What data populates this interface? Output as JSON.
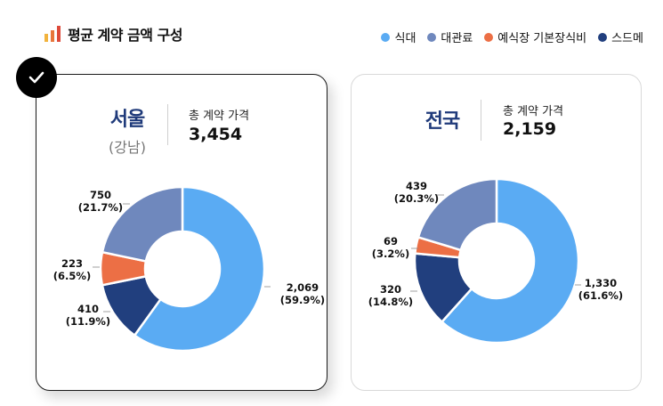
{
  "header": {
    "title": "평균 계약 금액 구성",
    "icon": "bar-chart-icon"
  },
  "legend": [
    {
      "label": "식대",
      "color": "#5aabf3"
    },
    {
      "label": "대관료",
      "color": "#6f88bd"
    },
    {
      "label": "예식장 기본장식비",
      "color": "#ec6f45"
    },
    {
      "label": "스드메",
      "color": "#213f7e"
    }
  ],
  "cards": [
    {
      "region": "서울",
      "subregion": "(강남)",
      "price_label": "총 계약 가격",
      "price_value": "3,454",
      "selected": true
    },
    {
      "region": "전국",
      "subregion": "",
      "price_label": "총 계약 가격",
      "price_value": "2,159",
      "selected": false
    }
  ],
  "chart_data": [
    {
      "type": "pie",
      "subtype": "donut",
      "categories": [
        "식대",
        "스드메",
        "예식장 기본장식비",
        "대관료"
      ],
      "values": [
        2069,
        410,
        223,
        750
      ],
      "percent_labels": [
        "(59.9%)",
        "(11.9%)",
        "(6.5%)",
        "(21.7%)"
      ],
      "value_labels": [
        "2,069",
        "410",
        "223",
        "750"
      ],
      "colors": [
        "#5aabf3",
        "#213f7e",
        "#ec6f45",
        "#6f88bd"
      ]
    },
    {
      "type": "pie",
      "subtype": "donut",
      "categories": [
        "식대",
        "스드메",
        "예식장 기본장식비",
        "대관료"
      ],
      "values": [
        1330,
        320,
        69,
        439
      ],
      "percent_labels": [
        "(61.6%)",
        "(14.8%)",
        "(3.2%)",
        "(20.3%)"
      ],
      "value_labels": [
        "1,330",
        "320",
        "69",
        "439"
      ],
      "colors": [
        "#5aabf3",
        "#213f7e",
        "#ec6f45",
        "#6f88bd"
      ]
    }
  ]
}
